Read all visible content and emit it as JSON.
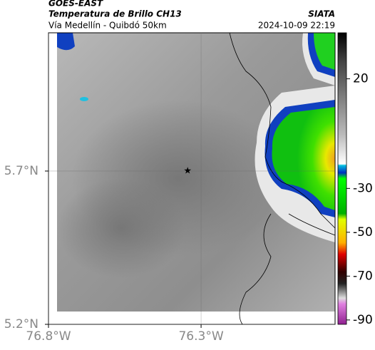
{
  "header": {
    "source": "GOES-EAST",
    "title": "Temperatura de Brillo CH13",
    "org": "SIATA",
    "subtitle": "Vía Medellín - Quibdó 50km",
    "timestamp": "2024-10-09 22:19"
  },
  "map": {
    "xlim": [
      -76.8,
      -75.861
    ],
    "ylim": [
      5.2,
      6.151
    ],
    "xticks": [
      {
        "value": -76.8,
        "label": "76.8°W"
      },
      {
        "value": -76.3,
        "label": "76.3°W"
      }
    ],
    "yticks": [
      {
        "value": 5.7,
        "label": "5.7°N"
      },
      {
        "value": 5.2,
        "label": "5.2°N"
      }
    ],
    "grid": true,
    "marker": {
      "lon": -76.344,
      "lat": 5.7
    }
  },
  "colorbar": {
    "lim": [
      -92,
      41
    ],
    "ticks": [
      20,
      -30,
      -50,
      -70,
      -90
    ]
  }
}
